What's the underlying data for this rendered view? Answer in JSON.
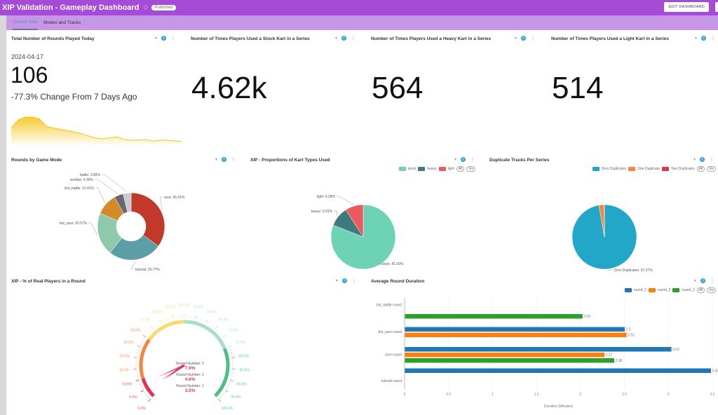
{
  "header": {
    "title": "XIP Validation - Gameplay Dashboard",
    "status_badge": "Published",
    "edit_button": "EDIT DASHBOARD"
  },
  "tabs": [
    {
      "label": "Overall View",
      "active": true
    },
    {
      "label": "Modes and Tracks",
      "active": false
    }
  ],
  "panel_controls": {
    "filter_count": "0"
  },
  "panels": {
    "rounds_today": {
      "title": "Total Number of Rounds Played Today",
      "date": "2024-04-17",
      "value": "106",
      "change": "-77.3% Change From 7 Days Ago",
      "sparkline_color": "#f5c518",
      "sparkline": [
        0.55,
        0.85,
        0.95,
        0.95,
        0.88,
        0.6,
        0.55,
        0.5,
        0.45,
        0.4,
        0.33,
        0.25,
        0.18,
        0.15,
        0.2,
        0.22,
        0.12,
        0.1,
        0.11,
        0.12,
        0.07,
        0.1,
        0.1,
        0.08,
        0.05
      ]
    },
    "stock_kart": {
      "title": "Number of Times Players Used a Stock Kart in a Series",
      "value": "4.62k"
    },
    "heavy_kart": {
      "title": "Number of Times Players Used a Heavy Kart in a Series",
      "value": "564"
    },
    "light_kart": {
      "title": "Number of Times Players Used a Light Kart in a Series",
      "value": "514"
    },
    "game_mode": {
      "title": "Rounds by Game Mode"
    },
    "kart_types": {
      "title": "XIP - Proportions of Kart Types Used",
      "legend_all": "All",
      "legend_inv": "Inv"
    },
    "duplicates": {
      "title": "Duplicate Tracks Per Series",
      "legend_all": "All",
      "legend_inv": "Inv"
    },
    "real_players": {
      "title": "XIP - % of Real Players in a Round"
    },
    "round_duration": {
      "title": "Average Round Duration",
      "legend_all": "All",
      "legend_inv": "Inv"
    }
  },
  "chart_data": [
    {
      "id": "game_mode",
      "type": "pie",
      "donut": true,
      "title": "Rounds by Game Mode",
      "slices": [
        {
          "label": "race",
          "value": 35.01,
          "display": "race: 35.01%",
          "color": "#c0392b"
        },
        {
          "label": "tutorial",
          "value": 25.77,
          "display": "tutorial: 25.77%",
          "color": "#5b9ea6"
        },
        {
          "label": "bot_race",
          "value": 20.57,
          "display": "bot_race: 20.57%",
          "color": "#8fc9ad"
        },
        {
          "label": "bot_battle",
          "value": 10.41,
          "display": "bot_battle: 10.41%",
          "color": "#d4892a"
        },
        {
          "label": "zombie",
          "value": 4.39,
          "display": "zombie: 4.39%",
          "color": "#666a70"
        },
        {
          "label": "battle",
          "value": 3.85,
          "display": "battle: 3.85%",
          "color": "#c8ccd2"
        }
      ]
    },
    {
      "id": "kart_types",
      "type": "pie",
      "title": "XIP - Proportions of Kart Types Used",
      "legend": "top-right",
      "slices": [
        {
          "label": "stock",
          "value": 81.0,
          "display": "stock: 81.00%",
          "color": "#6dd3b4"
        },
        {
          "label": "heavy",
          "value": 9.91,
          "display": "heavy: 9.91%",
          "color": "#3d7a7e"
        },
        {
          "label": "light",
          "value": 9.09,
          "display": "light: 9.09%",
          "color": "#ea5a5f"
        }
      ]
    },
    {
      "id": "duplicates",
      "type": "pie",
      "title": "Duplicate Tracks Per Series",
      "legend": "top-right",
      "slices": [
        {
          "label": "Zero Duplicates",
          "value": 97.27,
          "display": "Zero Duplicates: 97.27%",
          "color": "#22a7c9"
        },
        {
          "label": "One Duplicate",
          "value": 2.6,
          "display": "",
          "color": "#f5853f"
        },
        {
          "label": "Two Duplicates",
          "value": 0.13,
          "display": "",
          "color": "#e0344f"
        }
      ]
    },
    {
      "id": "real_players",
      "type": "gauge",
      "title": "XIP - % of Real Players in a Round",
      "min": 0,
      "max": 100,
      "ticks": [
        "0.0%",
        "5.0%",
        "10.0%",
        "15.0%",
        "20.0%",
        "25.0%",
        "30.0%",
        "35.0%",
        "40.0%",
        "45.0%",
        "50.0%",
        "55.0%",
        "60.0%",
        "65.0%",
        "70.0%",
        "75.0%",
        "80.0%",
        "85.0%",
        "90.0%",
        "95.0%",
        "100.0%"
      ],
      "bands": [
        {
          "from": 0,
          "to": 10,
          "color": "#e0344f"
        },
        {
          "from": 10,
          "to": 30,
          "color": "#f5853f"
        },
        {
          "from": 30,
          "to": 50,
          "color": "#fbd971"
        },
        {
          "from": 50,
          "to": 75,
          "color": "#a8dfc4"
        },
        {
          "from": 75,
          "to": 100,
          "color": "#4cbf7f"
        }
      ],
      "series": [
        {
          "name": "Round Number: 3",
          "value": 7.9,
          "display": "7.9%"
        },
        {
          "name": "Round Number: 2",
          "value": 4.6,
          "display": "4.6%"
        },
        {
          "name": "Round Number: 1",
          "value": 3.5,
          "display": "3.5%"
        }
      ]
    },
    {
      "id": "round_duration",
      "type": "bar",
      "orientation": "horizontal",
      "title": "Average Round Duration",
      "xlabel": "Duration (Minutes)",
      "xlim": [
        0,
        3.5
      ],
      "xticks": [
        "0",
        "0.5",
        "1",
        "1.5",
        "2",
        "2.5",
        "3",
        "3.5"
      ],
      "categories": [
        "bot_battle round",
        "bot_race round",
        "race round",
        "tutorial round"
      ],
      "legend": "top-right",
      "series": [
        {
          "name": "round_1",
          "color": "#1f77b4",
          "values": [
            null,
            2.5,
            3.03,
            3.48
          ],
          "labels": [
            "",
            "2.5",
            "3.03",
            "3.48"
          ]
        },
        {
          "name": "round_3",
          "color": "#ff7f0e",
          "values": [
            null,
            2.52,
            2.27,
            null
          ],
          "labels": [
            "",
            "2.52",
            "2.27",
            ""
          ]
        },
        {
          "name": "round_2",
          "color": "#2ca02c",
          "values": [
            2.02,
            null,
            2.38,
            null
          ],
          "labels": [
            "2.02",
            "",
            "2.38",
            ""
          ]
        }
      ]
    }
  ]
}
